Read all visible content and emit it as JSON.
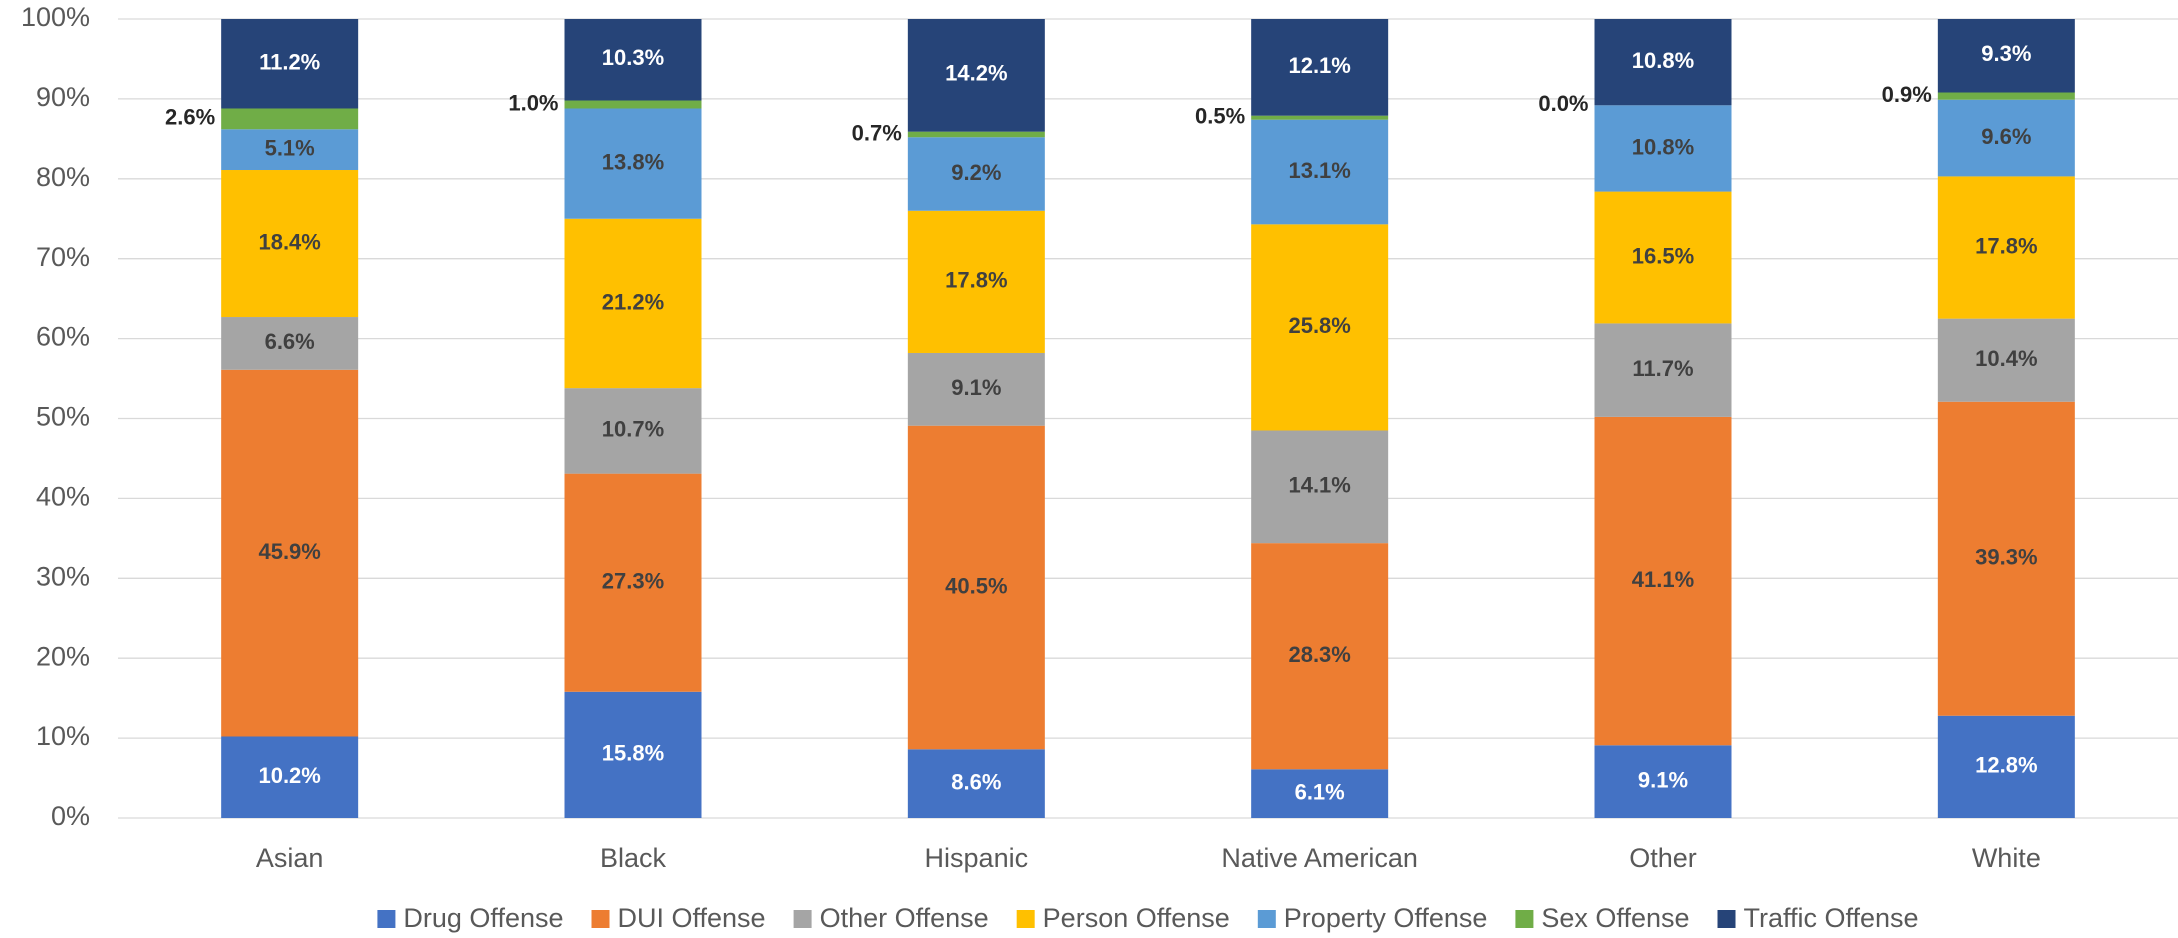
{
  "chart_data": {
    "type": "stacked_bar",
    "categories": [
      "Asian",
      "Black",
      "Hispanic",
      "Native American",
      "Other",
      "White"
    ],
    "series": [
      {
        "name": "Drug Offense",
        "color": "#4472c4",
        "values": [
          10.2,
          15.8,
          8.6,
          6.1,
          9.1,
          12.8
        ],
        "value_labels": [
          "10.2%",
          "15.8%",
          "8.6%",
          "6.1%",
          "9.1%",
          "12.8%"
        ]
      },
      {
        "name": "DUI Offense",
        "color": "#ed7d31",
        "values": [
          45.9,
          27.3,
          40.5,
          28.3,
          41.1,
          39.3
        ],
        "value_labels": [
          "45.9%",
          "27.3%",
          "40.5%",
          "28.3%",
          "41.1%",
          "39.3%"
        ]
      },
      {
        "name": "Other Offense",
        "color": "#a5a5a5",
        "values": [
          6.6,
          10.7,
          9.1,
          14.1,
          11.7,
          10.4
        ],
        "value_labels": [
          "6.6%",
          "10.7%",
          "9.1%",
          "14.1%",
          "11.7%",
          "10.4%"
        ]
      },
      {
        "name": "Person Offense",
        "color": "#ffc000",
        "values": [
          18.4,
          21.2,
          17.8,
          25.8,
          16.5,
          17.8
        ],
        "value_labels": [
          "18.4%",
          "21.2%",
          "17.8%",
          "25.8%",
          "16.5%",
          "17.8%"
        ]
      },
      {
        "name": "Property Offense",
        "color": "#5b9bd5",
        "values": [
          5.1,
          13.8,
          9.2,
          13.1,
          10.8,
          9.6
        ],
        "value_labels": [
          "5.1%",
          "13.8%",
          "9.2%",
          "13.1%",
          "10.8%",
          "9.6%"
        ]
      },
      {
        "name": "Sex Offense",
        "color": "#70ad47",
        "values": [
          2.6,
          1.0,
          0.7,
          0.5,
          0.0,
          0.9
        ],
        "value_labels": [
          "2.6%",
          "1.0%",
          "0.7%",
          "0.5%",
          "0.0%",
          "0.9%"
        ]
      },
      {
        "name": "Traffic Offense",
        "color": "#264478",
        "values": [
          11.2,
          10.3,
          14.2,
          12.1,
          10.8,
          9.3
        ],
        "value_labels": [
          "11.2%",
          "10.3%",
          "14.2%",
          "12.1%",
          "10.8%",
          "9.3%"
        ]
      }
    ],
    "ylim": [
      0,
      100
    ],
    "yticks": [
      {
        "value": 0,
        "label": "0%"
      },
      {
        "value": 10,
        "label": "10%"
      },
      {
        "value": 20,
        "label": "20%"
      },
      {
        "value": 30,
        "label": "30%"
      },
      {
        "value": 40,
        "label": "40%"
      },
      {
        "value": 50,
        "label": "50%"
      },
      {
        "value": 60,
        "label": "60%"
      },
      {
        "value": 70,
        "label": "70%"
      },
      {
        "value": 80,
        "label": "80%"
      },
      {
        "value": 90,
        "label": "90%"
      },
      {
        "value": 100,
        "label": "100%"
      }
    ],
    "grid": true,
    "legend": "bottom"
  }
}
